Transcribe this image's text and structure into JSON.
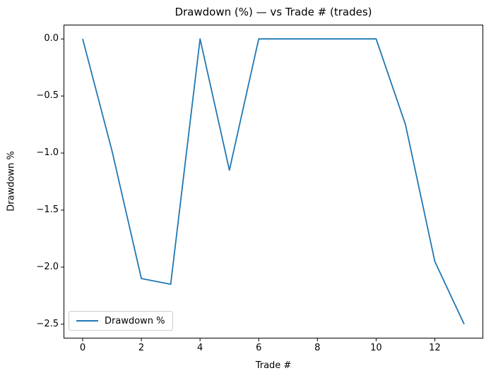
{
  "chart_data": {
    "type": "line",
    "title": "Drawdown (%) — vs Trade # (trades)",
    "xlabel": "Trade #",
    "ylabel": "Drawdown %",
    "legend": {
      "label": "Drawdown %",
      "position": "lower left"
    },
    "x": [
      0,
      1,
      2,
      3,
      4,
      5,
      6,
      7,
      8,
      9,
      10,
      11,
      12,
      13
    ],
    "series": [
      {
        "name": "Drawdown %",
        "color": "#1f77b4",
        "values": [
          0.0,
          -0.98,
          -2.1,
          -2.15,
          0.0,
          -1.15,
          0.0,
          0.0,
          0.0,
          0.0,
          0.0,
          -0.75,
          -1.95,
          -2.5
        ]
      }
    ],
    "xlim": [
      -0.65,
      13.65
    ],
    "ylim": [
      -2.625,
      0.125
    ],
    "xticks": [
      {
        "value": 0,
        "label": "0"
      },
      {
        "value": 2,
        "label": "2"
      },
      {
        "value": 4,
        "label": "4"
      },
      {
        "value": 6,
        "label": "6"
      },
      {
        "value": 8,
        "label": "8"
      },
      {
        "value": 10,
        "label": "10"
      },
      {
        "value": 12,
        "label": "12"
      }
    ],
    "yticks": [
      {
        "value": 0.0,
        "label": "0.0"
      },
      {
        "value": -0.5,
        "label": "−0.5"
      },
      {
        "value": -1.0,
        "label": "−1.0"
      },
      {
        "value": -1.5,
        "label": "−1.5"
      },
      {
        "value": -2.0,
        "label": "−2.0"
      },
      {
        "value": -2.5,
        "label": "−2.5"
      }
    ],
    "grid": false,
    "axes_color": "#000000",
    "background": "#ffffff"
  }
}
